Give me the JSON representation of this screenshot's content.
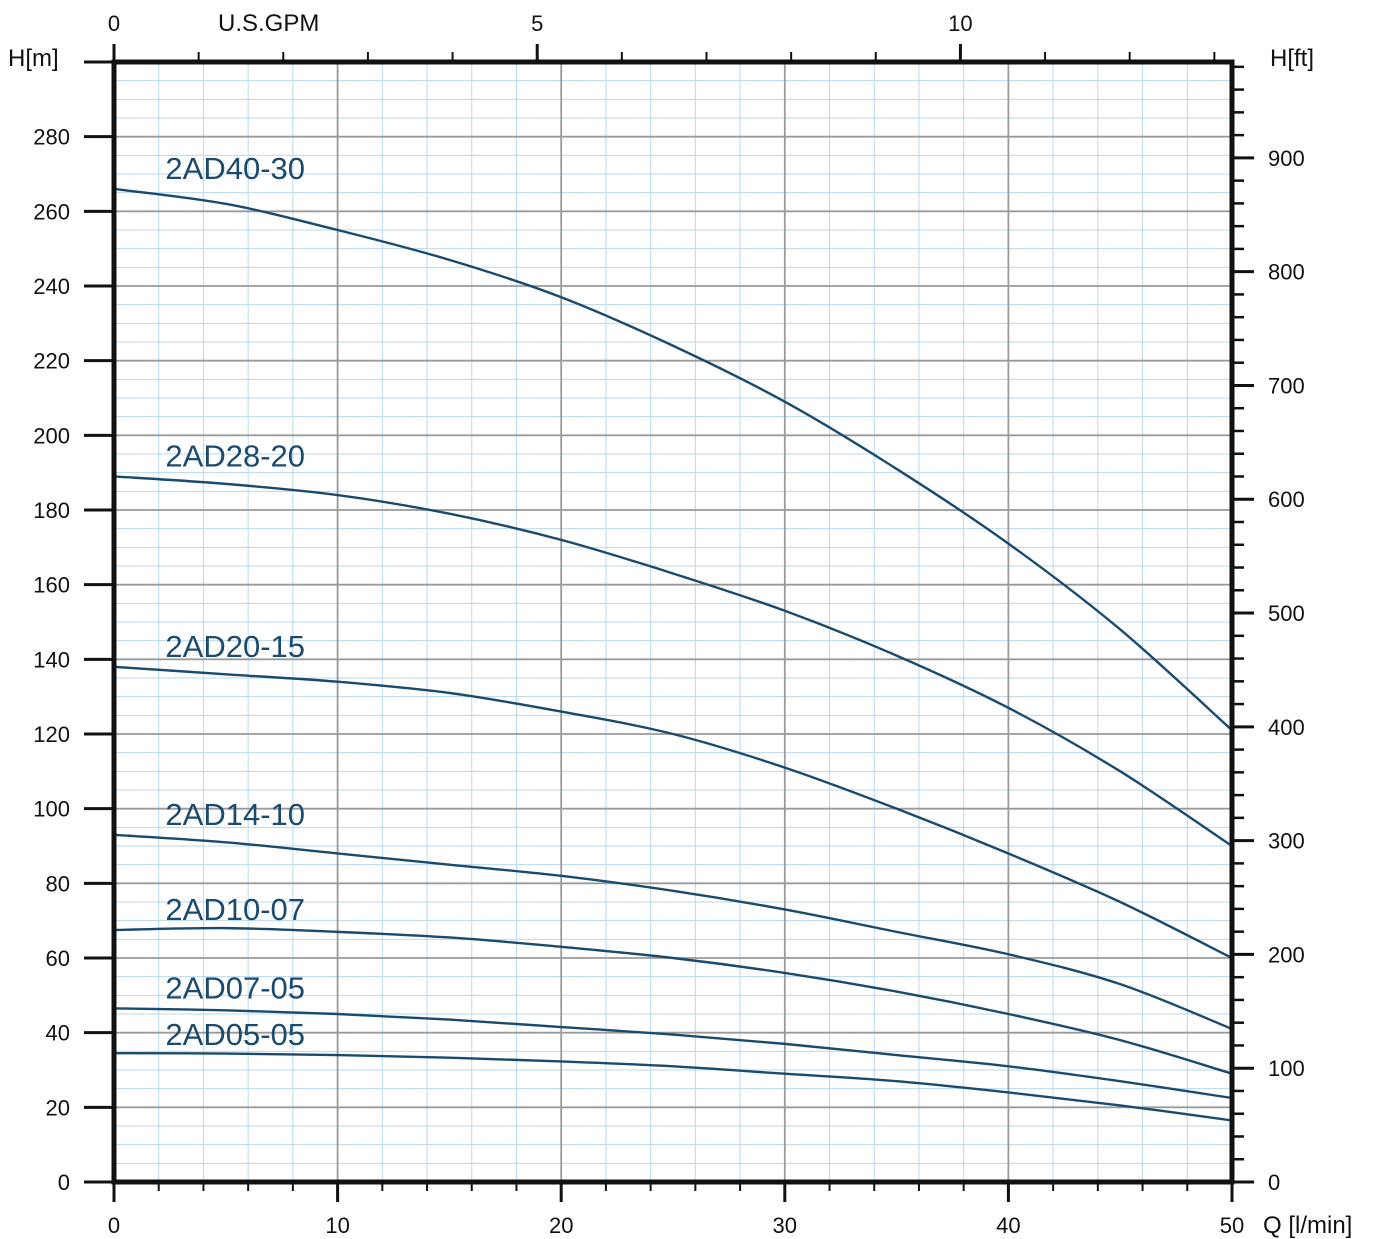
{
  "chart_data": {
    "type": "line",
    "x_label": "Q [l/min]",
    "y_label": "H[m]",
    "y2_label": "H[ft]",
    "x2_label": "U.S.GPM",
    "xlim": [
      0,
      50
    ],
    "ylim": [
      0,
      300
    ],
    "x_ticks": [
      "0",
      "10",
      "20",
      "30",
      "40",
      "50"
    ],
    "y_ticks": [
      "0",
      "20",
      "40",
      "60",
      "80",
      "100",
      "120",
      "140",
      "160",
      "180",
      "200",
      "220",
      "240",
      "260",
      "280"
    ],
    "y2_ticks": [
      "0",
      "100",
      "200",
      "300",
      "400",
      "500",
      "600",
      "700",
      "800",
      "900"
    ],
    "x2_ticks": [
      "0",
      "5",
      "10"
    ],
    "grid": true,
    "series_color": "#1a4a6e",
    "series": [
      {
        "name": "2AD40-30",
        "x": [
          0,
          5,
          10,
          15,
          20,
          25,
          30,
          35,
          40,
          45,
          50
        ],
        "y": [
          266,
          262,
          255,
          247,
          237,
          224,
          209,
          191,
          171,
          148,
          121
        ]
      },
      {
        "name": "2AD28-20",
        "x": [
          0,
          5,
          10,
          15,
          20,
          25,
          30,
          35,
          40,
          45,
          50
        ],
        "y": [
          189,
          187,
          184,
          179,
          172,
          163,
          153,
          141,
          127,
          110,
          90
        ]
      },
      {
        "name": "2AD20-15",
        "x": [
          0,
          5,
          10,
          15,
          20,
          25,
          30,
          35,
          40,
          45,
          50
        ],
        "y": [
          138,
          136,
          134,
          131,
          126,
          120,
          111,
          100,
          88,
          75,
          60
        ]
      },
      {
        "name": "2AD14-10",
        "x": [
          0,
          5,
          10,
          15,
          20,
          25,
          30,
          35,
          40,
          45,
          50
        ],
        "y": [
          93,
          91,
          88,
          85,
          82,
          78,
          73,
          67,
          61,
          53,
          41
        ]
      },
      {
        "name": "2AD10-07",
        "x": [
          0,
          5,
          10,
          15,
          20,
          25,
          30,
          35,
          40,
          45,
          50
        ],
        "y": [
          67.5,
          68,
          67,
          65.5,
          63,
          60,
          56,
          51,
          45,
          38,
          29
        ]
      },
      {
        "name": "2AD07-05",
        "x": [
          0,
          5,
          10,
          15,
          20,
          25,
          30,
          35,
          40,
          45,
          50
        ],
        "y": [
          46.5,
          46,
          45,
          43.5,
          41.5,
          39.5,
          37,
          34,
          31,
          27,
          22.5
        ]
      },
      {
        "name": "2AD05-05",
        "x": [
          0,
          5,
          10,
          15,
          20,
          25,
          30,
          35,
          40,
          45,
          50
        ],
        "y": [
          34.5,
          34.4,
          34,
          33.3,
          32.3,
          31,
          29,
          27,
          24,
          20.5,
          16.5
        ]
      }
    ]
  }
}
